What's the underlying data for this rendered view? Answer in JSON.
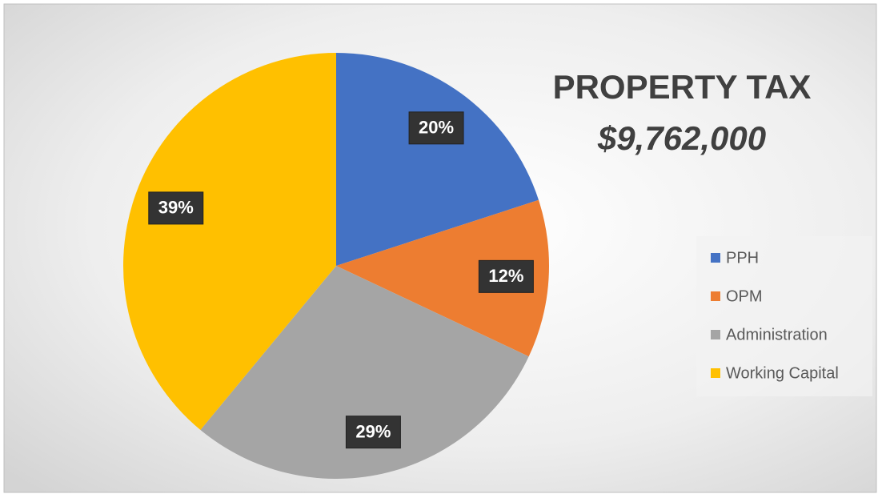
{
  "chart_data": {
    "type": "pie",
    "title": "PROPERTY TAX",
    "subtitle": "$9,762,000",
    "categories": [
      "PPH",
      "OPM",
      "Administration",
      "Working Capital"
    ],
    "values": [
      20,
      12,
      29,
      39
    ],
    "value_labels": [
      "20%",
      "12%",
      "29%",
      "39%"
    ],
    "colors": [
      "#4472c4",
      "#ed7d31",
      "#a5a5a5",
      "#ffc000"
    ],
    "legend": "right"
  }
}
